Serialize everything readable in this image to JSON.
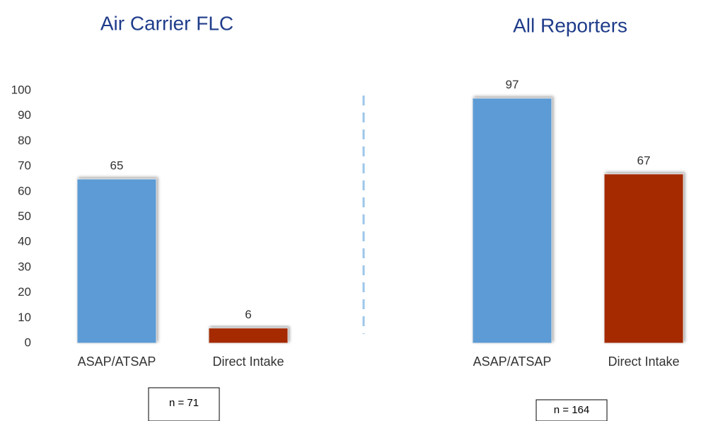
{
  "chart_data": [
    {
      "type": "bar",
      "title": "Air Carrier FLC",
      "categories": [
        "ASAP/ATSAP",
        "Direct Intake"
      ],
      "values": [
        65,
        6
      ],
      "colors": [
        "#5b9bd5",
        "#a52a00"
      ],
      "ylim": [
        0,
        100
      ],
      "yticks": [
        0,
        10,
        20,
        30,
        40,
        50,
        60,
        70,
        80,
        90,
        100
      ],
      "note": "n = 71"
    },
    {
      "type": "bar",
      "title": "All Reporters",
      "categories": [
        "ASAP/ATSAP",
        "Direct Intake"
      ],
      "values": [
        97,
        67
      ],
      "colors": [
        "#5b9bd5",
        "#a52a00"
      ],
      "ylim": [
        0,
        100
      ],
      "note": "n = 164"
    }
  ]
}
